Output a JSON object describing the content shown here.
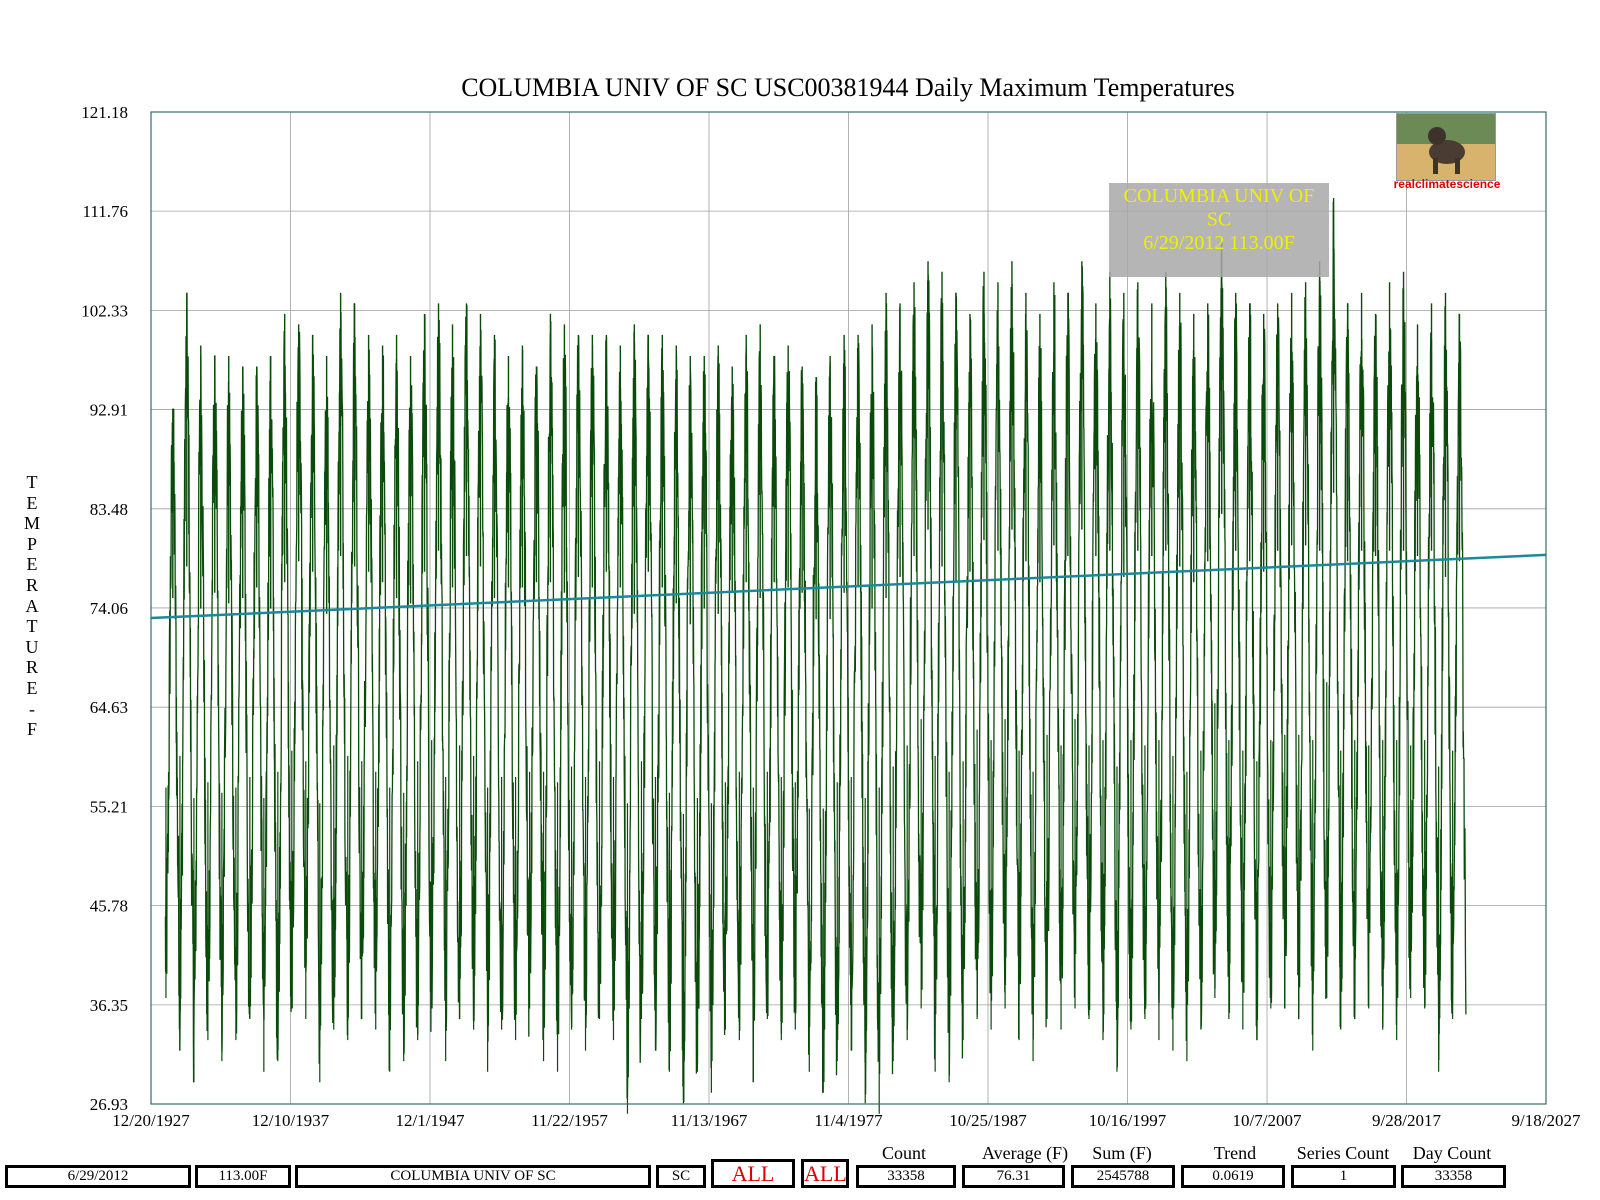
{
  "chart_data": {
    "type": "line",
    "title": "COLUMBIA UNIV OF SC USC00381944 Daily Maximum Temperatures",
    "ylabel": "TEMPERATURE - F",
    "xlabel": "",
    "ylim": [
      26.93,
      121.18
    ],
    "y_ticks": [
      "121.18",
      "111.76",
      "102.33",
      "92.91",
      "83.48",
      "74.06",
      "64.63",
      "55.21",
      "45.78",
      "36.35",
      "26.93"
    ],
    "x_range": [
      "12/20/1927",
      "9/18/2027"
    ],
    "x_ticks": [
      "12/20/1927",
      "12/10/1937",
      "12/1/1947",
      "11/22/1957",
      "11/13/1967",
      "11/4/1977",
      "10/25/1987",
      "10/16/1997",
      "10/7/2007",
      "9/28/2017",
      "9/18/2027"
    ],
    "grid": true,
    "series": [
      {
        "color": "#0a4a0a",
        "annual_cycle": {
          "year_start": 1929,
          "year_end": 2021,
          "summer_peaks": [
            93,
            104,
            99,
            98,
            98,
            97,
            97,
            98,
            102,
            101,
            100,
            98,
            104,
            103,
            100,
            99,
            100,
            98,
            102,
            103,
            101,
            103,
            102,
            100,
            98,
            99,
            97,
            102,
            101,
            100,
            100,
            100,
            99,
            101,
            100,
            100,
            99,
            98,
            98,
            99,
            97,
            100,
            101,
            98,
            99,
            97,
            96,
            98,
            100,
            100,
            101,
            104,
            103,
            105,
            107,
            106,
            104,
            102,
            106,
            105,
            107,
            104,
            102,
            105,
            104,
            107,
            103,
            106,
            104,
            105,
            103,
            106,
            104,
            102,
            103,
            109,
            104,
            103,
            102,
            103,
            104,
            105,
            107,
            113,
            103,
            104,
            102,
            105,
            106,
            101,
            103,
            104,
            102
          ],
          "winter_lows": [
            37,
            32,
            29,
            33,
            31,
            33,
            35,
            30,
            31,
            36,
            35,
            29,
            34,
            33,
            35,
            34,
            30,
            31,
            33,
            36,
            31,
            35,
            34,
            30,
            34,
            33,
            36,
            31,
            30,
            34,
            32,
            35,
            33,
            26,
            35,
            32,
            30,
            27,
            30,
            28,
            34,
            33,
            29,
            35,
            33,
            34,
            30,
            28,
            31,
            32,
            27,
            26,
            31,
            33,
            36,
            30,
            29,
            33,
            35,
            34,
            36,
            33,
            31,
            35,
            34,
            36,
            35,
            33,
            30,
            34,
            35,
            33,
            32,
            31,
            34,
            37,
            35,
            34,
            33,
            36,
            36,
            35,
            32,
            37,
            34,
            35,
            36,
            34,
            33,
            37,
            36,
            30,
            35
          ]
        }
      }
    ],
    "trend_line": {
      "color": "#1a8a9a",
      "start": [
        1927.97,
        73.1
      ],
      "end": [
        2027.7,
        79.1
      ]
    },
    "annotation": {
      "lines": [
        "COLUMBIA UNIV OF",
        "SC",
        "6/29/2012 113.00F"
      ],
      "color": "#f0f000"
    }
  },
  "logo": {
    "label": "realclimatescience",
    "icon": "dog-photo-icon"
  },
  "stats": {
    "labels": [
      "Count",
      "Average (F)",
      "Sum (F)",
      "Trend",
      "Series Count",
      "Day Count"
    ],
    "values": [
      "33358",
      "76.31",
      "2545788",
      "0.0619",
      "1",
      "33358"
    ]
  },
  "footer": {
    "date": "6/29/2012",
    "value": "113.00F",
    "station": "COLUMBIA UNIV OF SC",
    "state": "SC",
    "all1": "ALL",
    "all2": "ALL"
  }
}
